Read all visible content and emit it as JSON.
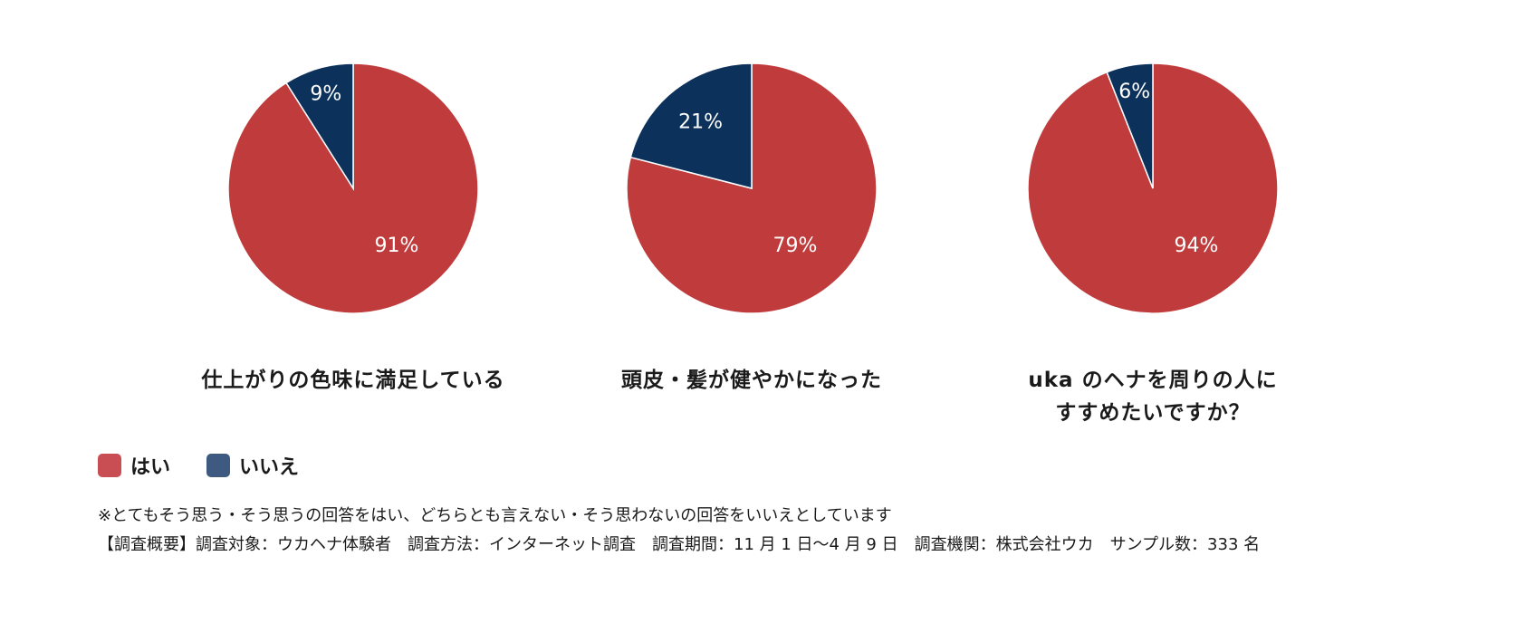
{
  "chart_data": [
    {
      "type": "pie",
      "title": "仕上がりの色味に満足している",
      "slices": [
        {
          "label": "はい",
          "value": 91,
          "value_label": "91%"
        },
        {
          "label": "いいえ",
          "value": 9,
          "value_label": "9%"
        }
      ]
    },
    {
      "type": "pie",
      "title": "頭皮・髪が健やかになった",
      "slices": [
        {
          "label": "はい",
          "value": 79,
          "value_label": "79%"
        },
        {
          "label": "いいえ",
          "value": 21,
          "value_label": "21%"
        }
      ]
    },
    {
      "type": "pie",
      "title": "uka のヘナを周りの人に\nすすめたいですか？",
      "slices": [
        {
          "label": "はい",
          "value": 94,
          "value_label": "94%"
        },
        {
          "label": "いいえ",
          "value": 6,
          "value_label": "6%"
        }
      ]
    }
  ],
  "colors": {
    "yes": "#c03c3c",
    "no": "#0c325c",
    "legend_yes": "#c84e54",
    "legend_no": "#3e5a80"
  },
  "legend": {
    "yes_label": "はい",
    "no_label": "いいえ",
    "placement": "bottom-left"
  },
  "notes": {
    "line1": "※とてもそう思う・そう思うの回答をはい、どちらとも言えない・そう思わないの回答をいいえとしています",
    "line2": "【調査概要】調査対象：ウカヘナ体験者　調査方法：インターネット調査　調査期間：11 月 1 日〜4 月 9 日　調査機関：株式会社ウカ　サンプル数：333 名"
  }
}
